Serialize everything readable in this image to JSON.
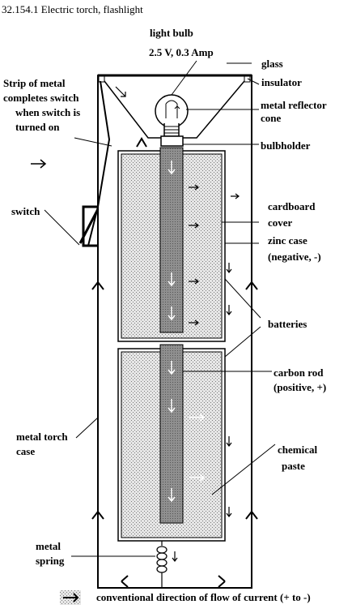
{
  "title": "32.154.1 Electric torch, flashlight",
  "labels": {
    "light_bulb": "light bulb",
    "bulb_rating": "2.5 V, 0.3 Amp",
    "glass": "glass",
    "insulator": "insulator",
    "strip_line1": "Strip of metal",
    "strip_line2": "completes switch",
    "strip_line3": "when switch is",
    "strip_line4": "turned on",
    "reflector_line1": "metal reflector",
    "reflector_line2": "cone",
    "bulbholder": "bulbholder",
    "switch": "switch",
    "cardboard_line1": "cardboard",
    "cardboard_line2": "cover",
    "zinc_line1": "zinc case",
    "zinc_line2": "(negative, -)",
    "batteries": "batteries",
    "carbon_line1": "carbon rod",
    "carbon_line2": "(positive, +)",
    "case_line1": "metal torch",
    "case_line2": "case",
    "paste_line1": "chemical",
    "paste_line2": "paste",
    "spring_line1": "metal",
    "spring_line2": "spring",
    "legend": "conventional direction of flow of current (+ to -)"
  },
  "colors": {
    "ink": "#000000",
    "battery_fill": "#d8d8d8",
    "rod_fill": "#9a9a9a",
    "reflector_fill": "#ffffff"
  }
}
